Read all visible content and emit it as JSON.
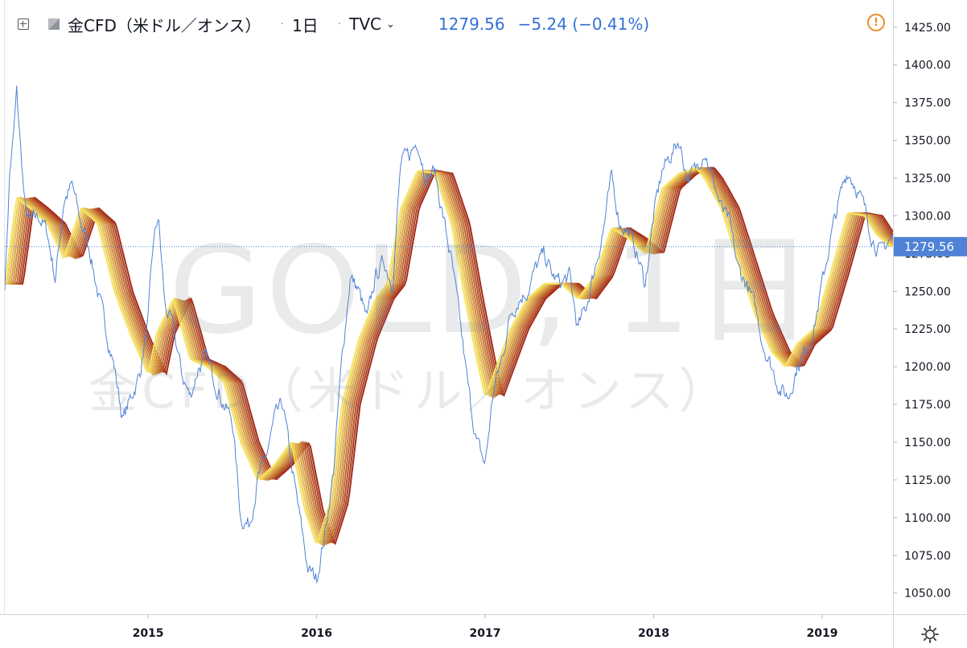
{
  "header": {
    "symbol": "金CFD（米ドル／オンス）",
    "interval": "1日",
    "source": "TVC",
    "last_price": "1279.56",
    "change": "−5.24 (−0.41%)"
  },
  "watermark": {
    "main": "GOLD, 1日",
    "sub": "金CFD（米ドル／オンス）"
  },
  "icons": {
    "expand": "expand-box-icon",
    "flag": "symbol-flag-icon",
    "caret": "chevron-down-icon",
    "alert": "alert-circle-icon",
    "settings": "gear-icon"
  },
  "colors": {
    "price_line": "#4f82d6",
    "last_price_tag": "#4f82d6",
    "ribbon_fast": "#f7e463",
    "ribbon_slow": "#a32a1a"
  },
  "chart_data": {
    "type": "line",
    "title": "GOLD, 1日",
    "xlabel": "",
    "ylabel": "",
    "ylim": [
      1036,
      1443
    ],
    "xlim": [
      2014.15,
      2019.42
    ],
    "x_ticks": [
      2015,
      2016,
      2017,
      2018,
      2019
    ],
    "x_tick_labels": [
      "2015",
      "2016",
      "2017",
      "2018",
      "2019"
    ],
    "y_ticks": [
      1050,
      1075,
      1100,
      1125,
      1150,
      1175,
      1200,
      1225,
      1250,
      1275,
      1300,
      1325,
      1350,
      1375,
      1400,
      1425
    ],
    "y_tick_labels": [
      "1050.00",
      "1075.00",
      "1100.00",
      "1125.00",
      "1150.00",
      "1175.00",
      "1200.00",
      "1225.00",
      "1250.00",
      "1275.00",
      "1300.00",
      "1325.00",
      "1350.00",
      "1375.00",
      "1400.00",
      "1425.00"
    ],
    "last_value": 1279.56,
    "last_value_label": "1279.56",
    "grid": false,
    "legend": "none",
    "series": [
      {
        "kind": "price",
        "x": [
          2014.15,
          2014.18,
          2014.2,
          2014.22,
          2014.25,
          2014.27,
          2014.3,
          2014.35,
          2014.4,
          2014.45,
          2014.5,
          2014.55,
          2014.6,
          2014.65,
          2014.7,
          2014.75,
          2014.8,
          2014.85,
          2014.9,
          2014.95,
          2015.0,
          2015.03,
          2015.06,
          2015.1,
          2015.15,
          2015.2,
          2015.25,
          2015.3,
          2015.35,
          2015.4,
          2015.45,
          2015.5,
          2015.55,
          2015.6,
          2015.65,
          2015.7,
          2015.75,
          2015.8,
          2015.85,
          2015.9,
          2015.95,
          2016.0,
          2016.05,
          2016.1,
          2016.15,
          2016.2,
          2016.25,
          2016.3,
          2016.35,
          2016.4,
          2016.45,
          2016.5,
          2016.55,
          2016.6,
          2016.65,
          2016.7,
          2016.75,
          2016.8,
          2016.85,
          2016.9,
          2016.95,
          2017.0,
          2017.05,
          2017.1,
          2017.15,
          2017.2,
          2017.25,
          2017.3,
          2017.35,
          2017.4,
          2017.45,
          2017.5,
          2017.55,
          2017.6,
          2017.65,
          2017.7,
          2017.75,
          2017.8,
          2017.85,
          2017.9,
          2017.95,
          2018.0,
          2018.05,
          2018.1,
          2018.15,
          2018.2,
          2018.25,
          2018.3,
          2018.35,
          2018.4,
          2018.45,
          2018.5,
          2018.55,
          2018.6,
          2018.65,
          2018.7,
          2018.75,
          2018.8,
          2018.85,
          2018.9,
          2018.95,
          2019.0,
          2019.05,
          2019.1,
          2019.15,
          2019.2,
          2019.25,
          2019.3,
          2019.35,
          2019.4
        ],
        "values": [
          1255,
          1330,
          1350,
          1382,
          1335,
          1305,
          1295,
          1300,
          1290,
          1258,
          1310,
          1320,
          1295,
          1280,
          1250,
          1225,
          1200,
          1165,
          1180,
          1195,
          1230,
          1280,
          1300,
          1240,
          1225,
          1195,
          1180,
          1200,
          1205,
          1190,
          1175,
          1165,
          1100,
          1095,
          1125,
          1140,
          1165,
          1175,
          1135,
          1100,
          1065,
          1060,
          1090,
          1130,
          1205,
          1260,
          1250,
          1230,
          1260,
          1270,
          1255,
          1335,
          1340,
          1350,
          1325,
          1330,
          1300,
          1270,
          1230,
          1185,
          1150,
          1135,
          1185,
          1205,
          1235,
          1245,
          1250,
          1265,
          1275,
          1260,
          1255,
          1260,
          1225,
          1240,
          1265,
          1290,
          1325,
          1295,
          1290,
          1275,
          1255,
          1300,
          1330,
          1340,
          1350,
          1325,
          1330,
          1345,
          1325,
          1305,
          1295,
          1265,
          1255,
          1240,
          1215,
          1200,
          1185,
          1180,
          1200,
          1210,
          1225,
          1255,
          1285,
          1310,
          1330,
          1320,
          1305,
          1285,
          1275,
          1285
        ]
      },
      {
        "kind": "ribbon-center",
        "x": [
          2014.15,
          2014.22,
          2014.3,
          2014.4,
          2014.5,
          2014.6,
          2014.7,
          2014.8,
          2014.9,
          2015.0,
          2015.05,
          2015.15,
          2015.25,
          2015.35,
          2015.45,
          2015.55,
          2015.65,
          2015.75,
          2015.85,
          2015.93,
          2016.0,
          2016.08,
          2016.15,
          2016.25,
          2016.35,
          2016.42,
          2016.5,
          2016.6,
          2016.7,
          2016.8,
          2016.88,
          2016.95,
          2017.0,
          2017.05,
          2017.15,
          2017.25,
          2017.35,
          2017.45,
          2017.55,
          2017.65,
          2017.75,
          2017.85,
          2017.95,
          2018.05,
          2018.15,
          2018.25,
          2018.3,
          2018.4,
          2018.5,
          2018.6,
          2018.7,
          2018.78,
          2018.85,
          2018.95,
          2019.05,
          2019.15,
          2019.25,
          2019.32,
          2019.4
        ],
        "values": [
          1255,
          1312,
          1305,
          1295,
          1272,
          1305,
          1295,
          1250,
          1220,
          1195,
          1222,
          1245,
          1205,
          1200,
          1190,
          1150,
          1125,
          1135,
          1150,
          1105,
          1082,
          1110,
          1175,
          1218,
          1245,
          1255,
          1305,
          1330,
          1328,
          1295,
          1245,
          1205,
          1180,
          1195,
          1225,
          1245,
          1255,
          1255,
          1245,
          1260,
          1292,
          1285,
          1275,
          1318,
          1328,
          1332,
          1325,
          1305,
          1270,
          1235,
          1210,
          1200,
          1215,
          1225,
          1262,
          1302,
          1300,
          1288,
          1280
        ]
      }
    ]
  }
}
